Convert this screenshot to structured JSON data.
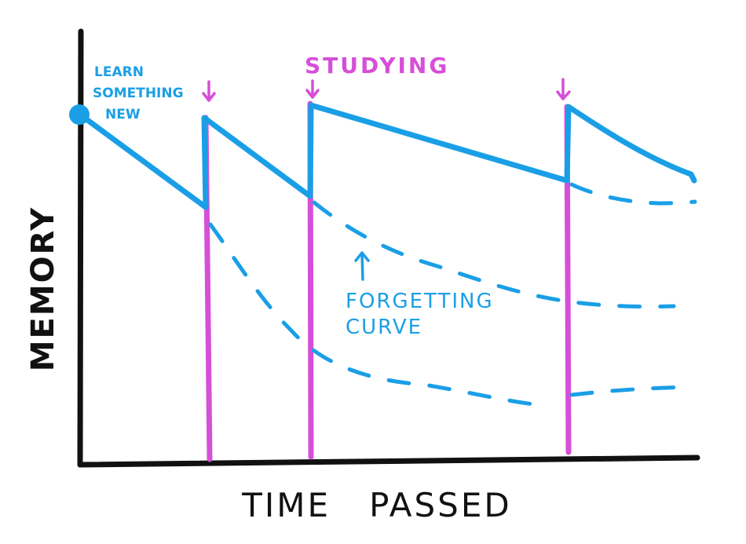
{
  "labels": {
    "learn": [
      "LEARN",
      "SOMETHING",
      "NEW"
    ],
    "studying": "STUDYING",
    "forgetting": [
      "FORGETTING",
      "CURVE"
    ],
    "y_axis": "MEMORY",
    "x_axis": "TIME   PASSED"
  },
  "colors": {
    "memory_line": "#1a9fe6",
    "study_marker": "#d64fd8",
    "axis": "#111111",
    "background": "#ffffff"
  }
}
